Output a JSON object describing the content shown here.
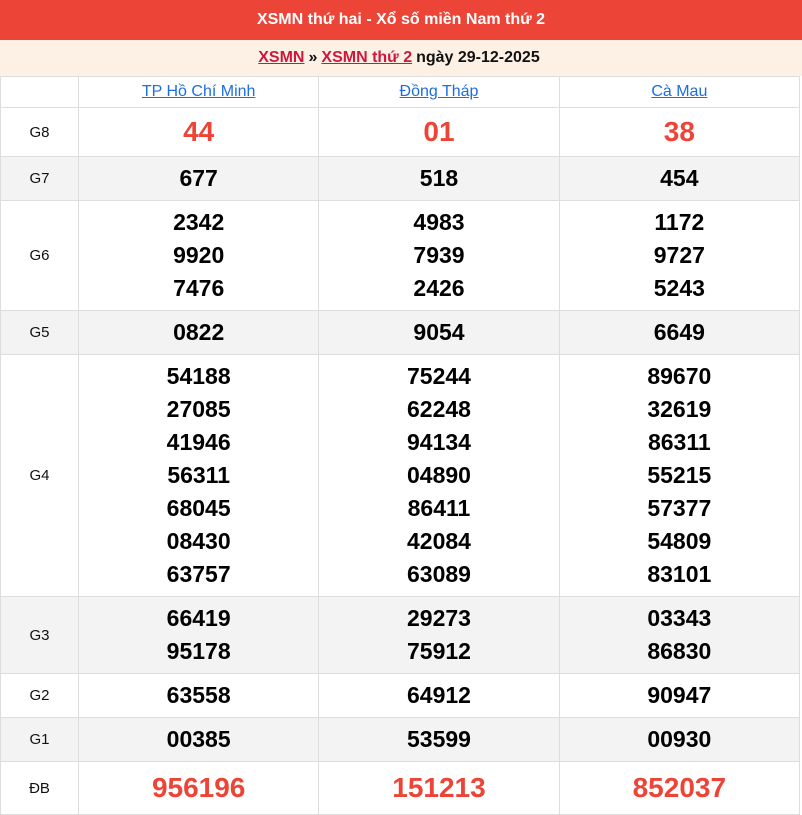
{
  "title": "XSMN thứ hai - Xổ số miền Nam thứ 2",
  "breadcrumb": {
    "link1": "XSMN",
    "sep": "»",
    "link2": "XSMN thứ 2",
    "text": "ngày 29-12-2025"
  },
  "provinces": [
    "TP Hồ Chí Minh",
    "Đồng Tháp",
    "Cà Mau"
  ],
  "accent": "#ec4537",
  "rows": [
    {
      "label": "G8",
      "big": true,
      "values": [
        [
          "44"
        ],
        [
          "01"
        ],
        [
          "38"
        ]
      ]
    },
    {
      "label": "G7",
      "values": [
        [
          "677"
        ],
        [
          "518"
        ],
        [
          "454"
        ]
      ]
    },
    {
      "label": "G6",
      "values": [
        [
          "2342",
          "9920",
          "7476"
        ],
        [
          "4983",
          "7939",
          "2426"
        ],
        [
          "1172",
          "9727",
          "5243"
        ]
      ]
    },
    {
      "label": "G5",
      "values": [
        [
          "0822"
        ],
        [
          "9054"
        ],
        [
          "6649"
        ]
      ]
    },
    {
      "label": "G4",
      "values": [
        [
          "54188",
          "27085",
          "41946",
          "56311",
          "68045",
          "08430",
          "63757"
        ],
        [
          "75244",
          "62248",
          "94134",
          "04890",
          "86411",
          "42084",
          "63089"
        ],
        [
          "89670",
          "32619",
          "86311",
          "55215",
          "57377",
          "54809",
          "83101"
        ]
      ]
    },
    {
      "label": "G3",
      "values": [
        [
          "66419",
          "95178"
        ],
        [
          "29273",
          "75912"
        ],
        [
          "03343",
          "86830"
        ]
      ]
    },
    {
      "label": "G2",
      "values": [
        [
          "63558"
        ],
        [
          "64912"
        ],
        [
          "90947"
        ]
      ]
    },
    {
      "label": "G1",
      "values": [
        [
          "00385"
        ],
        [
          "53599"
        ],
        [
          "00930"
        ]
      ]
    },
    {
      "label": "ĐB",
      "big": true,
      "values": [
        [
          "956196"
        ],
        [
          "151213"
        ],
        [
          "852037"
        ]
      ]
    }
  ]
}
